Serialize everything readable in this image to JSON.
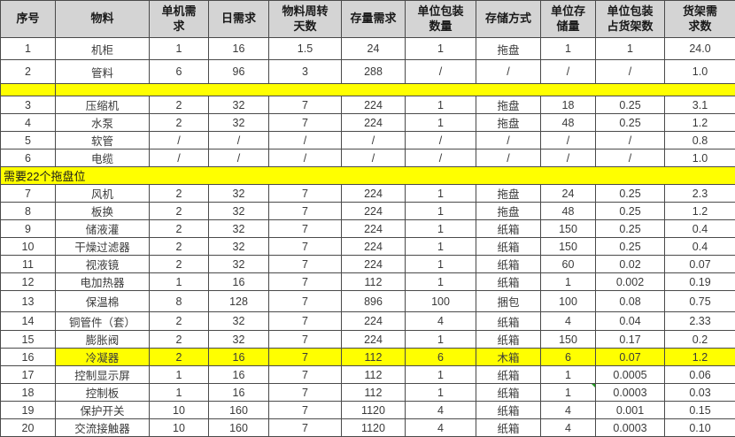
{
  "colors": {
    "highlight": "#ffff00",
    "header_bg": "#d4d4d4",
    "border": "#4a4a4a",
    "text": "#3a3a3a",
    "flag": "#1f9d1f"
  },
  "table": {
    "columns": [
      {
        "key": "index",
        "label": "序号"
      },
      {
        "key": "material",
        "label": "物料"
      },
      {
        "key": "per-unit-demand",
        "label": "单机需\n求"
      },
      {
        "key": "daily-demand",
        "label": "日需求"
      },
      {
        "key": "turnover-days",
        "label": "物料周转\n天数"
      },
      {
        "key": "stock-demand",
        "label": "存量需求"
      },
      {
        "key": "pkg-qty",
        "label": "单位包装\n数量"
      },
      {
        "key": "storage-method",
        "label": "存储方式"
      },
      {
        "key": "unit-storage",
        "label": "单位存\n储量"
      },
      {
        "key": "pkg-shelf-ratio",
        "label": "单位包装\n占货架数"
      },
      {
        "key": "shelf-demand",
        "label": "货架需\n求数"
      }
    ],
    "rows": [
      {
        "kind": "data",
        "cells": [
          "1",
          "机柜",
          "1",
          "16",
          "1.5",
          "24",
          "1",
          "拖盘",
          "1",
          "1",
          "24.0"
        ]
      },
      {
        "kind": "data",
        "cells": [
          "2",
          "管料",
          "6",
          "96",
          "3",
          "288",
          "/",
          "/",
          "/",
          "/",
          "1.0"
        ]
      },
      {
        "kind": "divider",
        "label": ""
      },
      {
        "kind": "data",
        "cells": [
          "3",
          "压缩机",
          "2",
          "32",
          "7",
          "224",
          "1",
          "拖盘",
          "18",
          "0.25",
          "3.1"
        ]
      },
      {
        "kind": "data",
        "cells": [
          "4",
          "水泵",
          "2",
          "32",
          "7",
          "224",
          "1",
          "拖盘",
          "48",
          "0.25",
          "1.2"
        ]
      },
      {
        "kind": "data",
        "cells": [
          "5",
          "软管",
          "/",
          "/",
          "/",
          "/",
          "/",
          "/",
          "/",
          "/",
          "0.8"
        ]
      },
      {
        "kind": "data",
        "cells": [
          "6",
          "电缆",
          "/",
          "/",
          "/",
          "/",
          "/",
          "/",
          "/",
          "/",
          "1.0"
        ]
      },
      {
        "kind": "note",
        "label": "需要22个拖盘位"
      },
      {
        "kind": "data",
        "cells": [
          "7",
          "风机",
          "2",
          "32",
          "7",
          "224",
          "1",
          "拖盘",
          "24",
          "0.25",
          "2.3"
        ]
      },
      {
        "kind": "data",
        "cells": [
          "8",
          "板换",
          "2",
          "32",
          "7",
          "224",
          "1",
          "拖盘",
          "48",
          "0.25",
          "1.2"
        ]
      },
      {
        "kind": "data",
        "cells": [
          "9",
          "储液灌",
          "2",
          "32",
          "7",
          "224",
          "1",
          "纸箱",
          "150",
          "0.25",
          "0.4"
        ]
      },
      {
        "kind": "data",
        "cells": [
          "10",
          "干燥过滤器",
          "2",
          "32",
          "7",
          "224",
          "1",
          "纸箱",
          "150",
          "0.25",
          "0.4"
        ]
      },
      {
        "kind": "data",
        "cells": [
          "11",
          "视液镜",
          "2",
          "32",
          "7",
          "224",
          "1",
          "纸箱",
          "60",
          "0.02",
          "0.07"
        ]
      },
      {
        "kind": "data",
        "cells": [
          "12",
          "电加热器",
          "1",
          "16",
          "7",
          "112",
          "1",
          "纸箱",
          "1",
          "0.002",
          "0.19"
        ]
      },
      {
        "kind": "data",
        "cells": [
          "13",
          "保温棉",
          "8",
          "128",
          "7",
          "896",
          "100",
          "捆包",
          "100",
          "0.08",
          "0.75"
        ]
      },
      {
        "kind": "data",
        "cells": [
          "14",
          "铜管件（套）",
          "2",
          "32",
          "7",
          "224",
          "4",
          "纸箱",
          "4",
          "0.04",
          "2.33"
        ]
      },
      {
        "kind": "data",
        "cells": [
          "15",
          "膨胀阀",
          "2",
          "32",
          "7",
          "224",
          "1",
          "纸箱",
          "150",
          "0.17",
          "0.2"
        ]
      },
      {
        "kind": "data",
        "highlight": true,
        "cells": [
          "16",
          "冷凝器",
          "2",
          "16",
          "7",
          "112",
          "6",
          "木箱",
          "6",
          "0.07",
          "1.2"
        ]
      },
      {
        "kind": "data",
        "cells": [
          "17",
          "控制显示屏",
          "1",
          "16",
          "7",
          "112",
          "1",
          "纸箱",
          "1",
          "0.0005",
          "0.06"
        ]
      },
      {
        "kind": "data",
        "flag_col": 8,
        "cells": [
          "18",
          "控制板",
          "1",
          "16",
          "7",
          "112",
          "1",
          "纸箱",
          "1",
          "0.0003",
          "0.03"
        ]
      },
      {
        "kind": "data",
        "cells": [
          "19",
          "保护开关",
          "10",
          "160",
          "7",
          "1120",
          "4",
          "纸箱",
          "4",
          "0.001",
          "0.15"
        ]
      },
      {
        "kind": "data",
        "cells": [
          "20",
          "交流接触器",
          "10",
          "160",
          "7",
          "1120",
          "4",
          "纸箱",
          "4",
          "0.0003",
          "0.10"
        ]
      }
    ]
  }
}
